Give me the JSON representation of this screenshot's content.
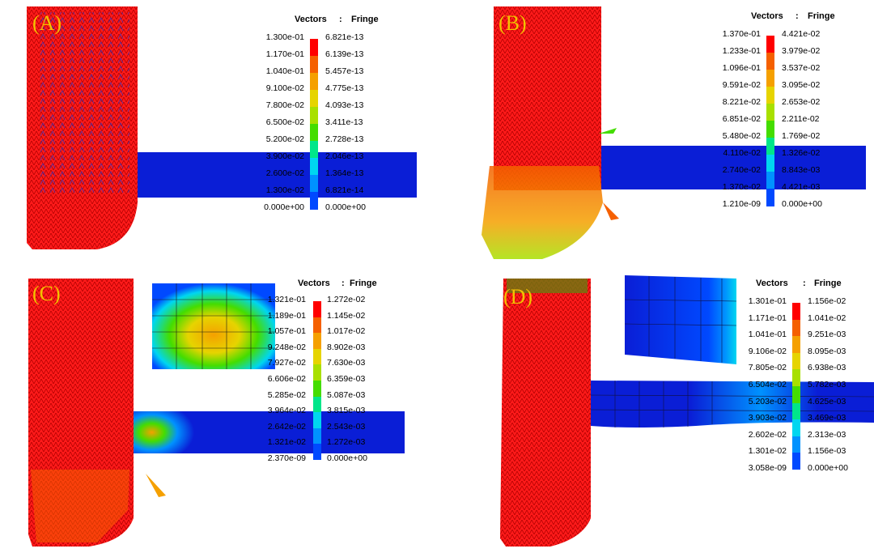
{
  "colors": {
    "scale": [
      "#0000ff",
      "#0049ff",
      "#0092ff",
      "#00d6f0",
      "#00e68a",
      "#44dd00",
      "#a8e000",
      "#e6d400",
      "#f5a000",
      "#f56000",
      "#ff0000"
    ],
    "label": "#f2c200",
    "plate": "#0a1ed6",
    "body": "#ff1a1a"
  },
  "panels": [
    {
      "label": "(A)",
      "legend": {
        "title_left": "Vectors",
        "title_sep": ":",
        "title_right": "Fringe",
        "vectors": [
          "1.300e-01",
          "1.170e-01",
          "1.040e-01",
          "9.100e-02",
          "7.800e-02",
          "6.500e-02",
          "5.200e-02",
          "3.900e-02",
          "2.600e-02",
          "1.300e-02",
          "0.000e+00"
        ],
        "fringe": [
          "6.821e-13",
          "6.139e-13",
          "5.457e-13",
          "4.775e-13",
          "4.093e-13",
          "3.411e-13",
          "2.728e-13",
          "2.046e-13",
          "1.364e-13",
          "6.821e-14",
          "0.000e+00"
        ]
      }
    },
    {
      "label": "(B)",
      "legend": {
        "title_left": "Vectors",
        "title_sep": ":",
        "title_right": "Fringe",
        "vectors": [
          "1.370e-01",
          "1.233e-01",
          "1.096e-01",
          "9.591e-02",
          "8.221e-02",
          "6.851e-02",
          "5.480e-02",
          "4.110e-02",
          "2.740e-02",
          "1.370e-02",
          "1.210e-09"
        ],
        "fringe": [
          "4.421e-02",
          "3.979e-02",
          "3.537e-02",
          "3.095e-02",
          "2.653e-02",
          "2.211e-02",
          "1.769e-02",
          "1.326e-02",
          "8.843e-03",
          "4.421e-03",
          "0.000e+00"
        ]
      }
    },
    {
      "label": "(C)",
      "legend": {
        "title_left": "Vectors",
        "title_sep": ":",
        "title_right": "Fringe",
        "vectors": [
          "1.321e-01",
          "1.189e-01",
          "1.057e-01",
          "9.248e-02",
          "7.927e-02",
          "6.606e-02",
          "5.285e-02",
          "3.964e-02",
          "2.642e-02",
          "1.321e-02",
          "2.370e-09"
        ],
        "fringe": [
          "1.272e-02",
          "1.145e-02",
          "1.017e-02",
          "8.902e-03",
          "7.630e-03",
          "6.359e-03",
          "5.087e-03",
          "3.815e-03",
          "2.543e-03",
          "1.272e-03",
          "0.000e+00"
        ]
      }
    },
    {
      "label": "(D)",
      "legend": {
        "title_left": "Vectors",
        "title_sep": ":",
        "title_right": "Fringe",
        "vectors": [
          "1.301e-01",
          "1.171e-01",
          "1.041e-01",
          "9.106e-02",
          "7.805e-02",
          "6.504e-02",
          "5.203e-02",
          "3.903e-02",
          "2.602e-02",
          "1.301e-02",
          "3.058e-09"
        ],
        "fringe": [
          "1.156e-02",
          "1.041e-02",
          "9.251e-03",
          "8.095e-03",
          "6.938e-03",
          "5.782e-03",
          "4.625e-03",
          "3.469e-03",
          "2.313e-03",
          "1.156e-03",
          "0.000e+00"
        ]
      }
    }
  ]
}
